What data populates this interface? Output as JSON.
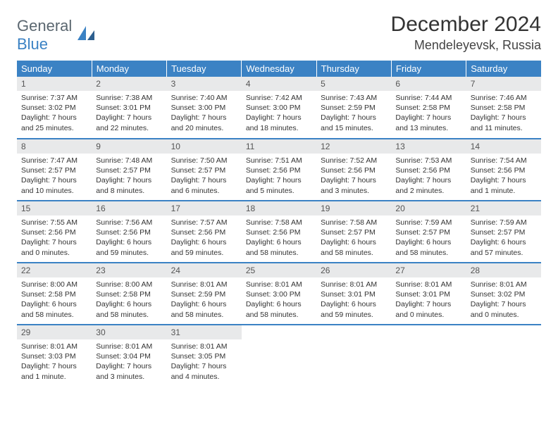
{
  "logo": {
    "word1": "General",
    "word2": "Blue",
    "color1": "#5b6770",
    "color2": "#3b82c4"
  },
  "title": "December 2024",
  "location": "Mendeleyevsk, Russia",
  "colors": {
    "header_bg": "#3b82c4",
    "header_text": "#ffffff",
    "daynum_bg": "#e8e9ea",
    "row_divider": "#3b82c4"
  },
  "weekdays": [
    "Sunday",
    "Monday",
    "Tuesday",
    "Wednesday",
    "Thursday",
    "Friday",
    "Saturday"
  ],
  "weeks": [
    [
      {
        "n": "1",
        "sr": "Sunrise: 7:37 AM",
        "ss": "Sunset: 3:02 PM",
        "dl": "Daylight: 7 hours and 25 minutes."
      },
      {
        "n": "2",
        "sr": "Sunrise: 7:38 AM",
        "ss": "Sunset: 3:01 PM",
        "dl": "Daylight: 7 hours and 22 minutes."
      },
      {
        "n": "3",
        "sr": "Sunrise: 7:40 AM",
        "ss": "Sunset: 3:00 PM",
        "dl": "Daylight: 7 hours and 20 minutes."
      },
      {
        "n": "4",
        "sr": "Sunrise: 7:42 AM",
        "ss": "Sunset: 3:00 PM",
        "dl": "Daylight: 7 hours and 18 minutes."
      },
      {
        "n": "5",
        "sr": "Sunrise: 7:43 AM",
        "ss": "Sunset: 2:59 PM",
        "dl": "Daylight: 7 hours and 15 minutes."
      },
      {
        "n": "6",
        "sr": "Sunrise: 7:44 AM",
        "ss": "Sunset: 2:58 PM",
        "dl": "Daylight: 7 hours and 13 minutes."
      },
      {
        "n": "7",
        "sr": "Sunrise: 7:46 AM",
        "ss": "Sunset: 2:58 PM",
        "dl": "Daylight: 7 hours and 11 minutes."
      }
    ],
    [
      {
        "n": "8",
        "sr": "Sunrise: 7:47 AM",
        "ss": "Sunset: 2:57 PM",
        "dl": "Daylight: 7 hours and 10 minutes."
      },
      {
        "n": "9",
        "sr": "Sunrise: 7:48 AM",
        "ss": "Sunset: 2:57 PM",
        "dl": "Daylight: 7 hours and 8 minutes."
      },
      {
        "n": "10",
        "sr": "Sunrise: 7:50 AM",
        "ss": "Sunset: 2:57 PM",
        "dl": "Daylight: 7 hours and 6 minutes."
      },
      {
        "n": "11",
        "sr": "Sunrise: 7:51 AM",
        "ss": "Sunset: 2:56 PM",
        "dl": "Daylight: 7 hours and 5 minutes."
      },
      {
        "n": "12",
        "sr": "Sunrise: 7:52 AM",
        "ss": "Sunset: 2:56 PM",
        "dl": "Daylight: 7 hours and 3 minutes."
      },
      {
        "n": "13",
        "sr": "Sunrise: 7:53 AM",
        "ss": "Sunset: 2:56 PM",
        "dl": "Daylight: 7 hours and 2 minutes."
      },
      {
        "n": "14",
        "sr": "Sunrise: 7:54 AM",
        "ss": "Sunset: 2:56 PM",
        "dl": "Daylight: 7 hours and 1 minute."
      }
    ],
    [
      {
        "n": "15",
        "sr": "Sunrise: 7:55 AM",
        "ss": "Sunset: 2:56 PM",
        "dl": "Daylight: 7 hours and 0 minutes."
      },
      {
        "n": "16",
        "sr": "Sunrise: 7:56 AM",
        "ss": "Sunset: 2:56 PM",
        "dl": "Daylight: 6 hours and 59 minutes."
      },
      {
        "n": "17",
        "sr": "Sunrise: 7:57 AM",
        "ss": "Sunset: 2:56 PM",
        "dl": "Daylight: 6 hours and 59 minutes."
      },
      {
        "n": "18",
        "sr": "Sunrise: 7:58 AM",
        "ss": "Sunset: 2:56 PM",
        "dl": "Daylight: 6 hours and 58 minutes."
      },
      {
        "n": "19",
        "sr": "Sunrise: 7:58 AM",
        "ss": "Sunset: 2:57 PM",
        "dl": "Daylight: 6 hours and 58 minutes."
      },
      {
        "n": "20",
        "sr": "Sunrise: 7:59 AM",
        "ss": "Sunset: 2:57 PM",
        "dl": "Daylight: 6 hours and 58 minutes."
      },
      {
        "n": "21",
        "sr": "Sunrise: 7:59 AM",
        "ss": "Sunset: 2:57 PM",
        "dl": "Daylight: 6 hours and 57 minutes."
      }
    ],
    [
      {
        "n": "22",
        "sr": "Sunrise: 8:00 AM",
        "ss": "Sunset: 2:58 PM",
        "dl": "Daylight: 6 hours and 58 minutes."
      },
      {
        "n": "23",
        "sr": "Sunrise: 8:00 AM",
        "ss": "Sunset: 2:58 PM",
        "dl": "Daylight: 6 hours and 58 minutes."
      },
      {
        "n": "24",
        "sr": "Sunrise: 8:01 AM",
        "ss": "Sunset: 2:59 PM",
        "dl": "Daylight: 6 hours and 58 minutes."
      },
      {
        "n": "25",
        "sr": "Sunrise: 8:01 AM",
        "ss": "Sunset: 3:00 PM",
        "dl": "Daylight: 6 hours and 58 minutes."
      },
      {
        "n": "26",
        "sr": "Sunrise: 8:01 AM",
        "ss": "Sunset: 3:01 PM",
        "dl": "Daylight: 6 hours and 59 minutes."
      },
      {
        "n": "27",
        "sr": "Sunrise: 8:01 AM",
        "ss": "Sunset: 3:01 PM",
        "dl": "Daylight: 7 hours and 0 minutes."
      },
      {
        "n": "28",
        "sr": "Sunrise: 8:01 AM",
        "ss": "Sunset: 3:02 PM",
        "dl": "Daylight: 7 hours and 0 minutes."
      }
    ],
    [
      {
        "n": "29",
        "sr": "Sunrise: 8:01 AM",
        "ss": "Sunset: 3:03 PM",
        "dl": "Daylight: 7 hours and 1 minute."
      },
      {
        "n": "30",
        "sr": "Sunrise: 8:01 AM",
        "ss": "Sunset: 3:04 PM",
        "dl": "Daylight: 7 hours and 3 minutes."
      },
      {
        "n": "31",
        "sr": "Sunrise: 8:01 AM",
        "ss": "Sunset: 3:05 PM",
        "dl": "Daylight: 7 hours and 4 minutes."
      },
      null,
      null,
      null,
      null
    ]
  ]
}
